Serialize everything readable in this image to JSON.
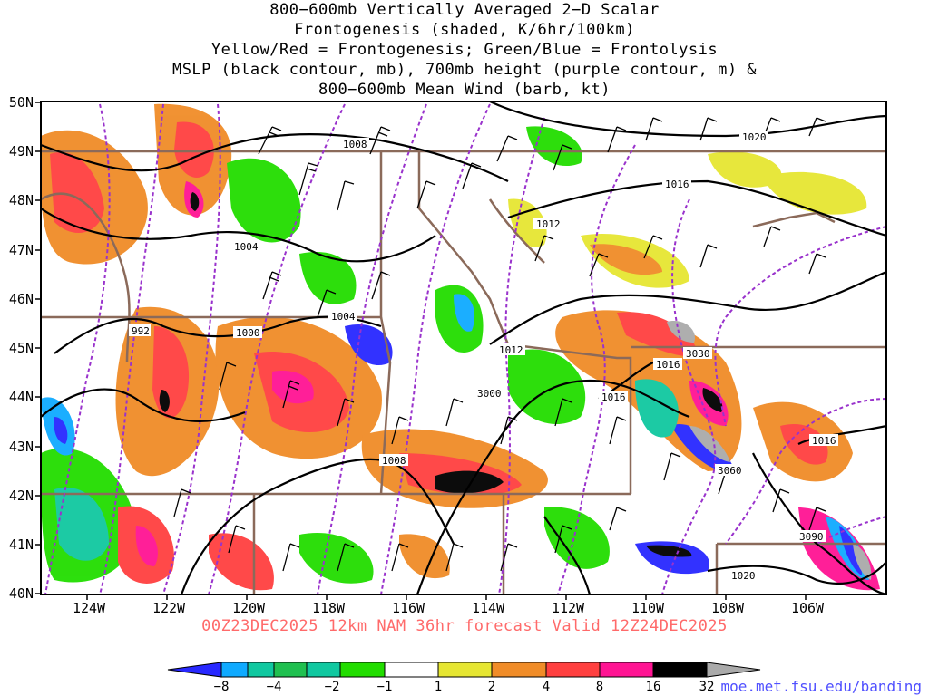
{
  "title_lines": [
    "800−600mb Vertically Averaged 2−D Scalar",
    "Frontogenesis (shaded, K/6hr/100km)",
    "Yellow/Red = Frontogenesis;  Green/Blue = Frontolysis",
    "MSLP (black contour, mb), 700mb height (purple contour, m) &",
    "800−600mb Mean Wind (barb, kt)"
  ],
  "lat_labels": [
    "50N",
    "49N",
    "48N",
    "47N",
    "46N",
    "45N",
    "44N",
    "43N",
    "42N",
    "41N",
    "40N"
  ],
  "lon_labels": [
    "124W",
    "122W",
    "120W",
    "118W",
    "116W",
    "114W",
    "112W",
    "110W",
    "108W",
    "106W"
  ],
  "valid_line": "00Z23DEC2025 12km NAM 36hr forecast Valid 12Z24DEC2025",
  "credit": "moe.met.fsu.edu/banding",
  "colorbar": {
    "ticks": [
      "−8",
      "−4",
      "−2",
      "−1",
      "1",
      "2",
      "4",
      "8",
      "16",
      "32"
    ],
    "colors": [
      "#2828ff",
      "#0faaff",
      "#10c8a0",
      "#20c050",
      "#22dd00",
      "#ffffff",
      "#e6e632",
      "#f08c28",
      "#ff4040",
      "#ff1493",
      "#000000",
      "#aaaaaa"
    ]
  },
  "mslp_labels": [
    "1008",
    "1020",
    "1016",
    "1012",
    "1004",
    "992",
    "1000",
    "1004",
    "1012",
    "1016",
    "1016",
    "1008",
    "1016",
    "1020"
  ],
  "height_labels": [
    "3000",
    "3030",
    "3060",
    "3090"
  ],
  "colors": {
    "mslp": "#000000",
    "height": "#9932cc",
    "borders": "#8b6a5a",
    "title": "#000000",
    "valid": "#ff6a6a",
    "credit": "#5050ff"
  }
}
